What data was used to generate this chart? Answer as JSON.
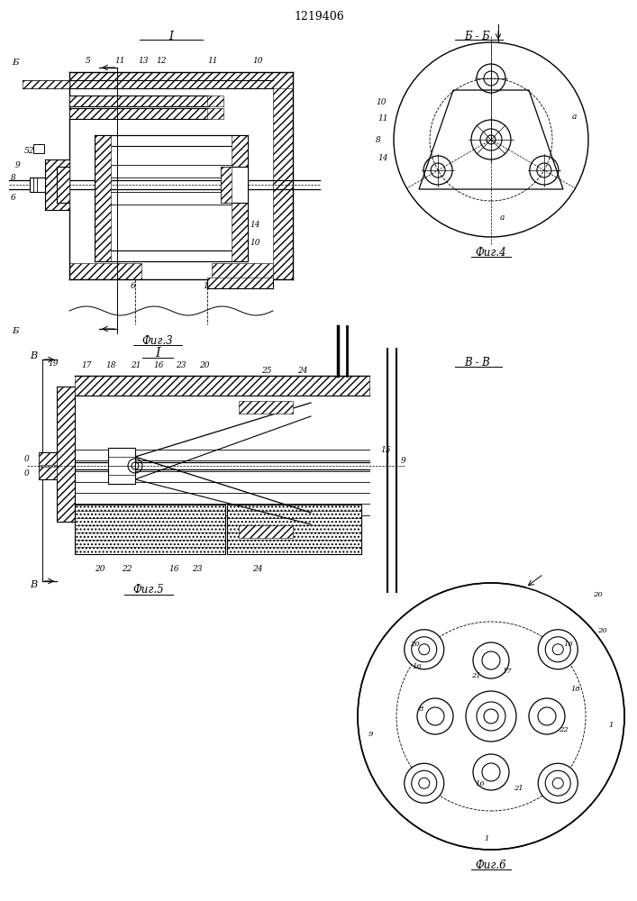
{
  "title": "1219406",
  "bg_color": "#ffffff",
  "fig3_caption": "Фиг.3",
  "fig4_caption": "Фиг.4",
  "fig5_caption": "Фиг.5",
  "fig6_caption": "Фиг.6",
  "section_b_b": "Б - Б",
  "section_v_v": "В - В",
  "label_I": "I",
  "label_B_upper": "Б",
  "label_V_upper": "В"
}
